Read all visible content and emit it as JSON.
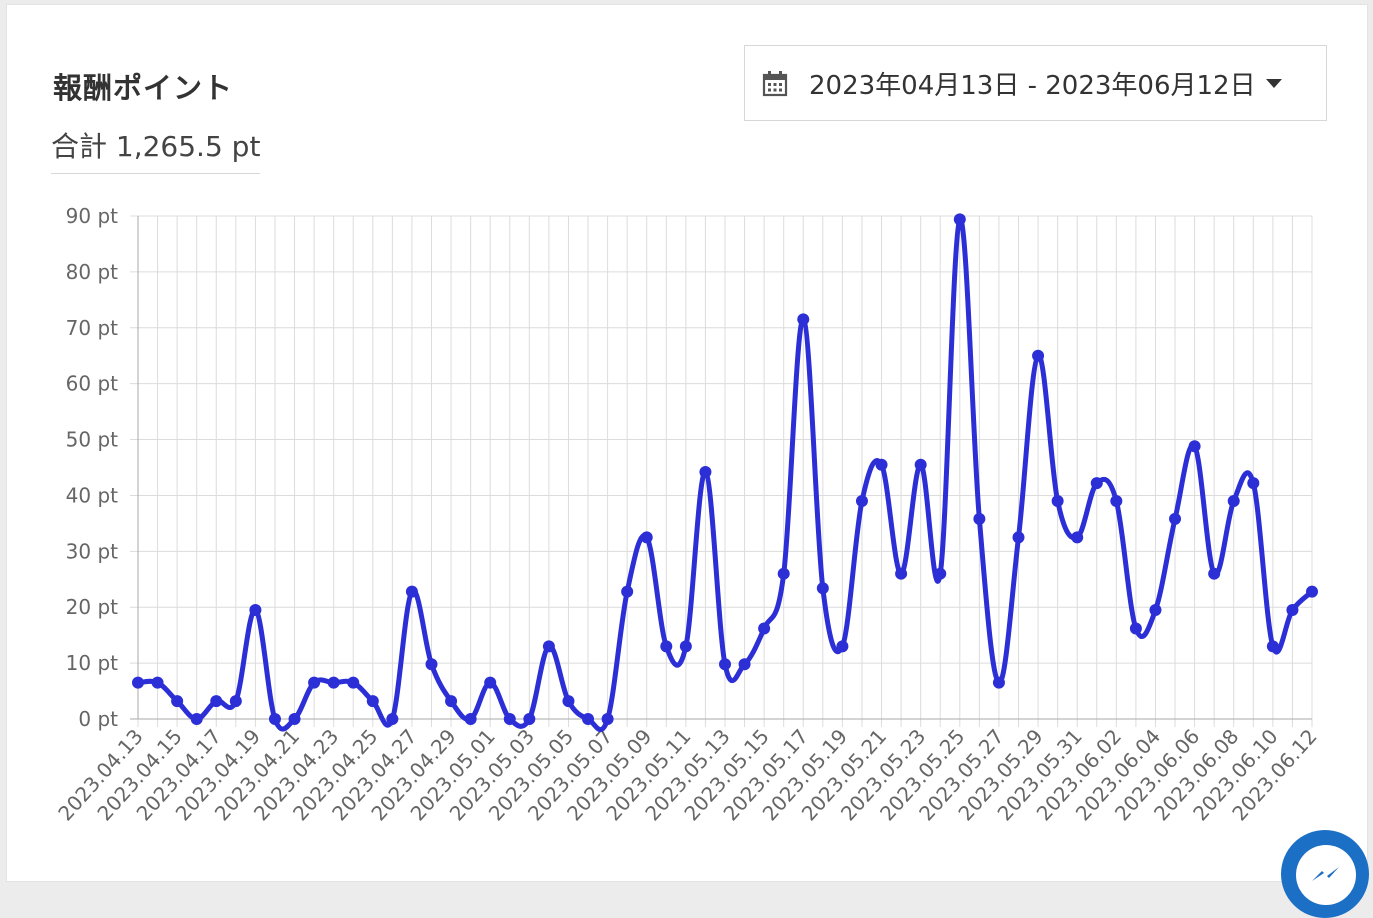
{
  "header": {
    "title": "報酬ポイント",
    "total": "合計 1,265.5 pt"
  },
  "date_range": {
    "label": "2023年04月13日 - 2023年06月12日",
    "icon": "calendar-icon",
    "caret_icon": "caret-down-icon"
  },
  "messenger": {
    "icon": "messenger-icon",
    "color": "#1b6fc4"
  },
  "chart_data": {
    "type": "line",
    "title": "",
    "xlabel": "",
    "ylabel": "",
    "line_color": "#2c2fd6",
    "grid": true,
    "y_unit_suffix": " pt",
    "ylim": [
      0,
      90
    ],
    "y_ticks": [
      0,
      10,
      20,
      30,
      40,
      50,
      60,
      70,
      80,
      90
    ],
    "y_tick_labels": [
      "0 pt",
      "10 pt",
      "20 pt",
      "30 pt",
      "40 pt",
      "50 pt",
      "60 pt",
      "70 pt",
      "80 pt",
      "90 pt"
    ],
    "x_tick_labels": [
      "2023.04.13",
      "2023.04.15",
      "2023.04.17",
      "2023.04.19",
      "2023.04.21",
      "2023.04.23",
      "2023.04.25",
      "2023.04.27",
      "2023.04.29",
      "2023.05.01",
      "2023.05.03",
      "2023.05.05",
      "2023.05.07",
      "2023.05.09",
      "2023.05.11",
      "2023.05.13",
      "2023.05.15",
      "2023.05.17",
      "2023.05.19",
      "2023.05.21",
      "2023.05.23",
      "2023.05.25",
      "2023.05.27",
      "2023.05.29",
      "2023.05.31",
      "2023.06.02",
      "2023.06.04",
      "2023.06.06",
      "2023.06.08",
      "2023.06.10",
      "2023.06.12"
    ],
    "series": [
      {
        "x": [
          "2023.04.13",
          "2023.04.14",
          "2023.04.15",
          "2023.04.16",
          "2023.04.17",
          "2023.04.18",
          "2023.04.19",
          "2023.04.20",
          "2023.04.21",
          "2023.04.22",
          "2023.04.23",
          "2023.04.24",
          "2023.04.25",
          "2023.04.26",
          "2023.04.27",
          "2023.04.28",
          "2023.04.29",
          "2023.04.30",
          "2023.05.01",
          "2023.05.02",
          "2023.05.03",
          "2023.05.04",
          "2023.05.05",
          "2023.05.06",
          "2023.05.07",
          "2023.05.08",
          "2023.05.09",
          "2023.05.10",
          "2023.05.11",
          "2023.05.12",
          "2023.05.13",
          "2023.05.14",
          "2023.05.15",
          "2023.05.16",
          "2023.05.17",
          "2023.05.18",
          "2023.05.19",
          "2023.05.20",
          "2023.05.21",
          "2023.05.22",
          "2023.05.23",
          "2023.05.24",
          "2023.05.25",
          "2023.05.26",
          "2023.05.27",
          "2023.05.28",
          "2023.05.29",
          "2023.05.30",
          "2023.05.31",
          "2023.06.01",
          "2023.06.02",
          "2023.06.03",
          "2023.06.04",
          "2023.06.05",
          "2023.06.06",
          "2023.06.07",
          "2023.06.08",
          "2023.06.09",
          "2023.06.10",
          "2023.06.11",
          "2023.06.12"
        ],
        "values": [
          6.5,
          6.5,
          3.2,
          0,
          3.2,
          3.2,
          19.5,
          0,
          0,
          6.5,
          6.5,
          6.5,
          3.2,
          0,
          22.8,
          9.8,
          3.2,
          0,
          6.5,
          0,
          0,
          13,
          3.2,
          0,
          0,
          22.8,
          32.5,
          13,
          13,
          44.2,
          9.8,
          9.8,
          16.2,
          26,
          71.5,
          23.4,
          13,
          39,
          45.5,
          26,
          45.5,
          26,
          89.4,
          35.8,
          6.5,
          32.5,
          65,
          39,
          32.5,
          42.2,
          39,
          16.2,
          19.5,
          35.8,
          48.8,
          26,
          39,
          42.2,
          13,
          19.5,
          22.8
        ]
      }
    ]
  }
}
